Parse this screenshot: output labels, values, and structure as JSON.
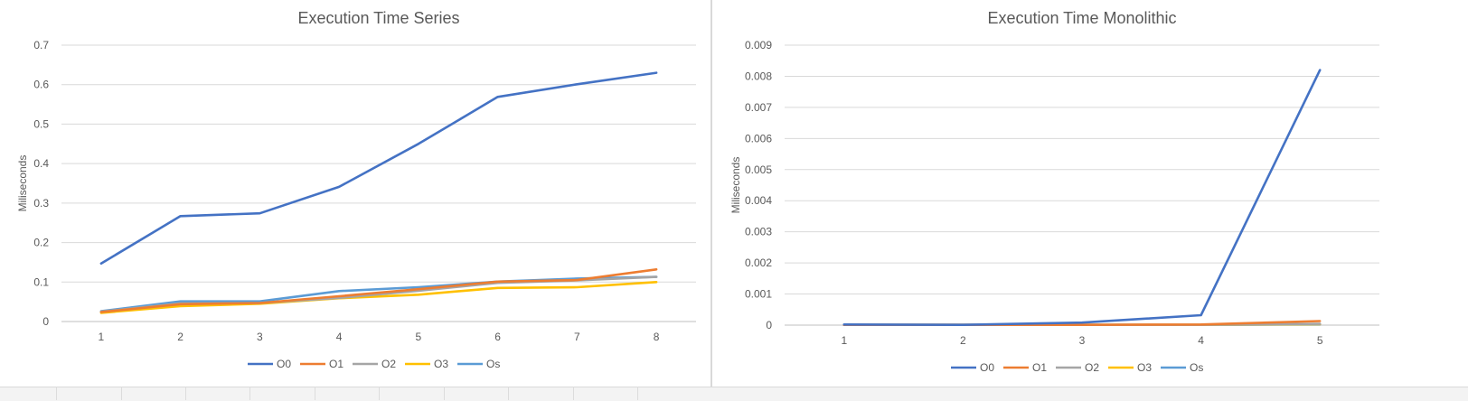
{
  "chart_data": [
    {
      "type": "line",
      "title": "Execution Time Series",
      "xlabel": "",
      "ylabel": "Miliseconds",
      "x": [
        1,
        2,
        3,
        4,
        5,
        6,
        7,
        8
      ],
      "ylim": [
        0,
        0.7
      ],
      "yticks": [
        "0",
        "0.1",
        "0.2",
        "0.3",
        "0.4",
        "0.5",
        "0.6",
        "0.7"
      ],
      "grid": true,
      "legend_position": "bottom",
      "series": [
        {
          "name": "O0",
          "color": "#4472C4",
          "values": [
            0.147,
            0.267,
            0.274,
            0.341,
            0.45,
            0.569,
            0.601,
            0.63
          ]
        },
        {
          "name": "O1",
          "color": "#ED7D31",
          "values": [
            0.024,
            0.044,
            0.047,
            0.064,
            0.082,
            0.101,
            0.105,
            0.132
          ]
        },
        {
          "name": "O2",
          "color": "#A5A5A5",
          "values": [
            0.025,
            0.046,
            0.047,
            0.06,
            0.078,
            0.098,
            0.104,
            0.113
          ]
        },
        {
          "name": "O3",
          "color": "#FFC000",
          "values": [
            0.022,
            0.039,
            0.045,
            0.059,
            0.068,
            0.085,
            0.087,
            0.1
          ]
        },
        {
          "name": "Os",
          "color": "#5B9BD5",
          "values": [
            0.026,
            0.051,
            0.051,
            0.077,
            0.087,
            0.101,
            0.109,
            0.113
          ]
        }
      ]
    },
    {
      "type": "line",
      "title": "Execution Time Monolithic",
      "xlabel": "",
      "ylabel": "Miliseconds",
      "x": [
        1,
        2,
        3,
        4,
        5
      ],
      "ylim": [
        0,
        0.009
      ],
      "yticks": [
        "0",
        "0.001",
        "0.002",
        "0.003",
        "0.004",
        "0.005",
        "0.006",
        "0.007",
        "0.008",
        "0.009"
      ],
      "grid": true,
      "legend_position": "bottom",
      "series": [
        {
          "name": "O0",
          "color": "#4472C4",
          "values": [
            2e-05,
            1e-05,
            8e-05,
            0.00032,
            0.0082
          ]
        },
        {
          "name": "O1",
          "color": "#ED7D31",
          "values": [
            1e-05,
            1e-05,
            1e-05,
            2e-05,
            0.00013
          ]
        },
        {
          "name": "O2",
          "color": "#A5A5A5",
          "values": [
            1e-05,
            1e-05,
            1e-05,
            1e-05,
            4e-05
          ]
        },
        {
          "name": "O3",
          "color": "#FFC000",
          "values": [
            1e-05,
            1e-05,
            1e-05,
            1e-05,
            3e-05
          ]
        },
        {
          "name": "Os",
          "color": "#5B9BD5",
          "values": [
            1e-05,
            1e-05,
            1e-05,
            1e-05,
            2e-05
          ]
        }
      ]
    }
  ]
}
